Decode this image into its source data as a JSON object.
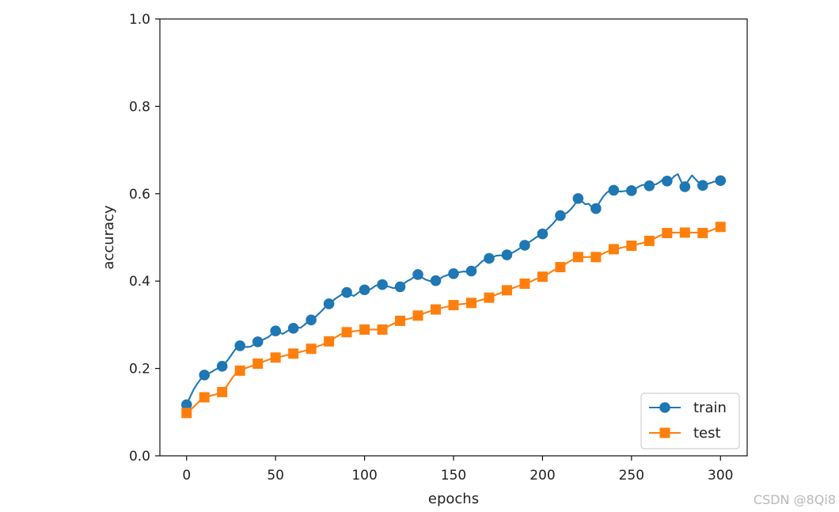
{
  "chart_data": {
    "type": "line",
    "title": "",
    "xlabel": "epochs",
    "ylabel": "accuracy",
    "xlim": [
      -15,
      315
    ],
    "ylim": [
      0.0,
      1.0
    ],
    "x_ticks": [
      0,
      50,
      100,
      150,
      200,
      250,
      300
    ],
    "x_tick_labels": [
      "0",
      "50",
      "100",
      "150",
      "200",
      "250",
      "300"
    ],
    "y_ticks": [
      0.0,
      0.2,
      0.4,
      0.6,
      0.8,
      1.0
    ],
    "y_tick_labels": [
      "0.0",
      "0.2",
      "0.4",
      "0.6",
      "0.8",
      "1.0"
    ],
    "grid": false,
    "legend": {
      "position": "bottom-right"
    },
    "series": [
      {
        "name": "train",
        "color": "#1f77b4",
        "marker": "circle",
        "x": [
          0,
          2,
          4,
          6,
          8,
          10,
          12,
          14,
          16,
          18,
          20,
          22,
          24,
          26,
          28,
          30,
          32,
          34,
          36,
          38,
          40,
          42,
          44,
          46,
          48,
          50,
          52,
          54,
          56,
          58,
          60,
          62,
          64,
          66,
          68,
          70,
          72,
          74,
          76,
          78,
          80,
          82,
          84,
          86,
          88,
          90,
          92,
          94,
          96,
          98,
          100,
          102,
          104,
          106,
          108,
          110,
          112,
          114,
          116,
          118,
          120,
          122,
          124,
          126,
          128,
          130,
          132,
          134,
          136,
          138,
          140,
          142,
          144,
          146,
          148,
          150,
          152,
          154,
          156,
          158,
          160,
          162,
          164,
          166,
          168,
          170,
          172,
          174,
          176,
          178,
          180,
          182,
          184,
          186,
          188,
          190,
          192,
          194,
          196,
          198,
          200,
          202,
          204,
          206,
          208,
          210,
          212,
          214,
          216,
          218,
          220,
          222,
          224,
          226,
          228,
          230,
          232,
          234,
          236,
          238,
          240,
          242,
          244,
          246,
          248,
          250,
          252,
          254,
          256,
          258,
          260,
          262,
          264,
          266,
          268,
          270,
          272,
          274,
          276,
          278,
          280,
          282,
          284,
          286,
          288,
          290,
          292,
          294,
          296,
          298,
          300
        ],
        "y": [
          0.117,
          0.135,
          0.152,
          0.165,
          0.176,
          0.185,
          0.188,
          0.192,
          0.197,
          0.201,
          0.205,
          0.213,
          0.224,
          0.236,
          0.247,
          0.252,
          0.25,
          0.249,
          0.25,
          0.255,
          0.261,
          0.264,
          0.268,
          0.272,
          0.279,
          0.286,
          0.283,
          0.279,
          0.284,
          0.289,
          0.292,
          0.294,
          0.293,
          0.299,
          0.306,
          0.311,
          0.317,
          0.324,
          0.332,
          0.341,
          0.348,
          0.354,
          0.361,
          0.366,
          0.372,
          0.374,
          0.369,
          0.366,
          0.372,
          0.378,
          0.38,
          0.379,
          0.383,
          0.389,
          0.392,
          0.392,
          0.388,
          0.387,
          0.384,
          0.385,
          0.387,
          0.394,
          0.4,
          0.404,
          0.41,
          0.415,
          0.409,
          0.404,
          0.401,
          0.399,
          0.401,
          0.404,
          0.41,
          0.413,
          0.416,
          0.417,
          0.419,
          0.421,
          0.422,
          0.421,
          0.423,
          0.43,
          0.437,
          0.445,
          0.45,
          0.452,
          0.455,
          0.458,
          0.459,
          0.458,
          0.46,
          0.463,
          0.467,
          0.472,
          0.477,
          0.482,
          0.488,
          0.493,
          0.499,
          0.504,
          0.508,
          0.516,
          0.524,
          0.532,
          0.542,
          0.55,
          0.553,
          0.557,
          0.565,
          0.575,
          0.589,
          0.583,
          0.576,
          0.577,
          0.568,
          0.566,
          0.58,
          0.593,
          0.602,
          0.608,
          0.608,
          0.606,
          0.605,
          0.606,
          0.607,
          0.607,
          0.611,
          0.616,
          0.62,
          0.62,
          0.618,
          0.62,
          0.622,
          0.627,
          0.634,
          0.629,
          0.631,
          0.64,
          0.645,
          0.627,
          0.616,
          0.631,
          0.642,
          0.633,
          0.625,
          0.619,
          0.622,
          0.624,
          0.627,
          0.629,
          0.63
        ],
        "markers_at": [
          0,
          10,
          20,
          30,
          40,
          50,
          60,
          70,
          80,
          90,
          100,
          110,
          120,
          130,
          140,
          150,
          160,
          170,
          180,
          190,
          200,
          210,
          220,
          230,
          240,
          250,
          260,
          270,
          280,
          290,
          300
        ]
      },
      {
        "name": "test",
        "color": "#ff7f0e",
        "marker": "square",
        "x": [
          0,
          2,
          4,
          6,
          8,
          10,
          12,
          14,
          16,
          18,
          20,
          22,
          24,
          26,
          28,
          30,
          32,
          34,
          36,
          38,
          40,
          42,
          44,
          46,
          48,
          50,
          52,
          54,
          56,
          58,
          60,
          62,
          64,
          66,
          68,
          70,
          72,
          74,
          76,
          78,
          80,
          82,
          84,
          86,
          88,
          90,
          92,
          94,
          96,
          98,
          100,
          102,
          104,
          106,
          108,
          110,
          112,
          114,
          116,
          118,
          120,
          122,
          124,
          126,
          128,
          130,
          132,
          134,
          136,
          138,
          140,
          142,
          144,
          146,
          148,
          150,
          152,
          154,
          156,
          158,
          160,
          162,
          164,
          166,
          168,
          170,
          172,
          174,
          176,
          178,
          180,
          182,
          184,
          186,
          188,
          190,
          192,
          194,
          196,
          198,
          200,
          202,
          204,
          206,
          208,
          210,
          212,
          214,
          216,
          218,
          220,
          222,
          224,
          226,
          228,
          230,
          232,
          234,
          236,
          238,
          240,
          242,
          244,
          246,
          248,
          250,
          252,
          254,
          256,
          258,
          260,
          262,
          264,
          266,
          268,
          270,
          272,
          274,
          276,
          278,
          280,
          282,
          284,
          286,
          288,
          290,
          292,
          294,
          296,
          298,
          300
        ],
        "y": [
          0.098,
          0.105,
          0.112,
          0.12,
          0.128,
          0.134,
          0.136,
          0.138,
          0.14,
          0.143,
          0.146,
          0.156,
          0.168,
          0.18,
          0.19,
          0.195,
          0.199,
          0.202,
          0.205,
          0.208,
          0.211,
          0.214,
          0.217,
          0.22,
          0.223,
          0.225,
          0.226,
          0.228,
          0.23,
          0.232,
          0.234,
          0.236,
          0.238,
          0.24,
          0.242,
          0.245,
          0.248,
          0.251,
          0.254,
          0.258,
          0.262,
          0.267,
          0.272,
          0.277,
          0.281,
          0.283,
          0.284,
          0.285,
          0.286,
          0.287,
          0.289,
          0.289,
          0.289,
          0.289,
          0.289,
          0.289,
          0.293,
          0.298,
          0.302,
          0.306,
          0.309,
          0.311,
          0.313,
          0.315,
          0.318,
          0.321,
          0.324,
          0.327,
          0.33,
          0.333,
          0.335,
          0.337,
          0.339,
          0.341,
          0.343,
          0.345,
          0.346,
          0.347,
          0.348,
          0.349,
          0.35,
          0.352,
          0.355,
          0.357,
          0.36,
          0.362,
          0.365,
          0.369,
          0.372,
          0.376,
          0.379,
          0.382,
          0.385,
          0.388,
          0.391,
          0.394,
          0.397,
          0.4,
          0.404,
          0.407,
          0.41,
          0.414,
          0.419,
          0.424,
          0.428,
          0.432,
          0.437,
          0.442,
          0.447,
          0.451,
          0.455,
          0.455,
          0.455,
          0.455,
          0.455,
          0.455,
          0.459,
          0.463,
          0.467,
          0.47,
          0.473,
          0.474,
          0.476,
          0.478,
          0.479,
          0.481,
          0.483,
          0.485,
          0.487,
          0.489,
          0.492,
          0.496,
          0.5,
          0.504,
          0.507,
          0.51,
          0.511,
          0.511,
          0.511,
          0.511,
          0.511,
          0.511,
          0.511,
          0.511,
          0.511,
          0.51,
          0.512,
          0.515,
          0.518,
          0.521,
          0.524
        ],
        "markers_at": [
          0,
          10,
          20,
          30,
          40,
          50,
          60,
          70,
          80,
          90,
          100,
          110,
          120,
          130,
          140,
          150,
          160,
          170,
          180,
          190,
          200,
          210,
          220,
          230,
          240,
          250,
          260,
          270,
          280,
          290,
          300
        ]
      }
    ]
  },
  "watermark": "CSDN @8Qi8"
}
